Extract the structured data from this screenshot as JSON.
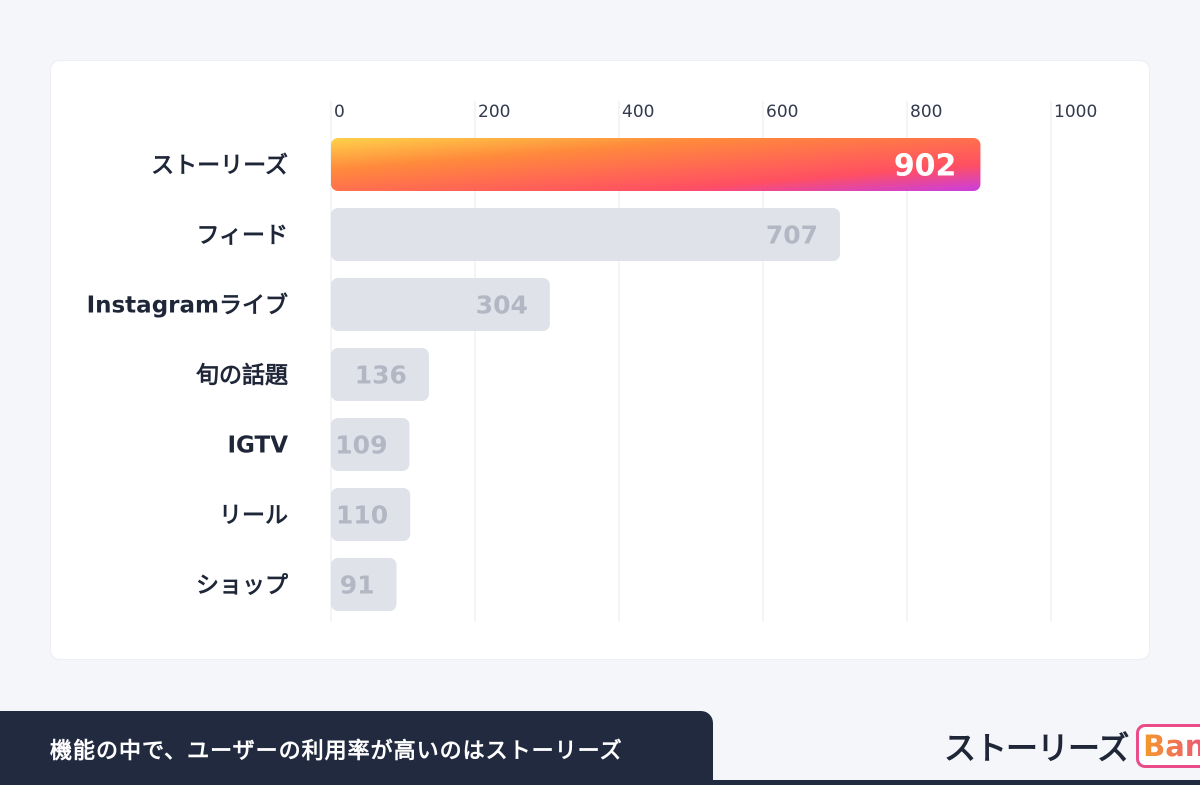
{
  "chart_data": {
    "type": "bar",
    "orientation": "horizontal",
    "categories": [
      "ストーリーズ",
      "フィード",
      "Instagramライブ",
      "旬の話題",
      "IGTV",
      "リール",
      "ショップ"
    ],
    "values": [
      902,
      707,
      304,
      136,
      109,
      110,
      91
    ],
    "xlim": [
      0,
      1000
    ],
    "x_ticks": [
      0,
      200,
      400,
      600,
      800,
      1000
    ],
    "highlight_index": 0,
    "grid": true,
    "colors": {
      "highlight_gradient": [
        "#ffd24a",
        "#ff8a3c",
        "#ff4f63",
        "#c93ee0"
      ],
      "default_bar": "#e0e2ea",
      "default_label": "#b3b7c4",
      "grid": "#e6e8ee"
    }
  },
  "caption": {
    "text": "機能の中で、ユーザーの利用率が高いのはストーリーズ"
  },
  "logo": {
    "word": "ストーリーズ",
    "badge": "Bank"
  }
}
